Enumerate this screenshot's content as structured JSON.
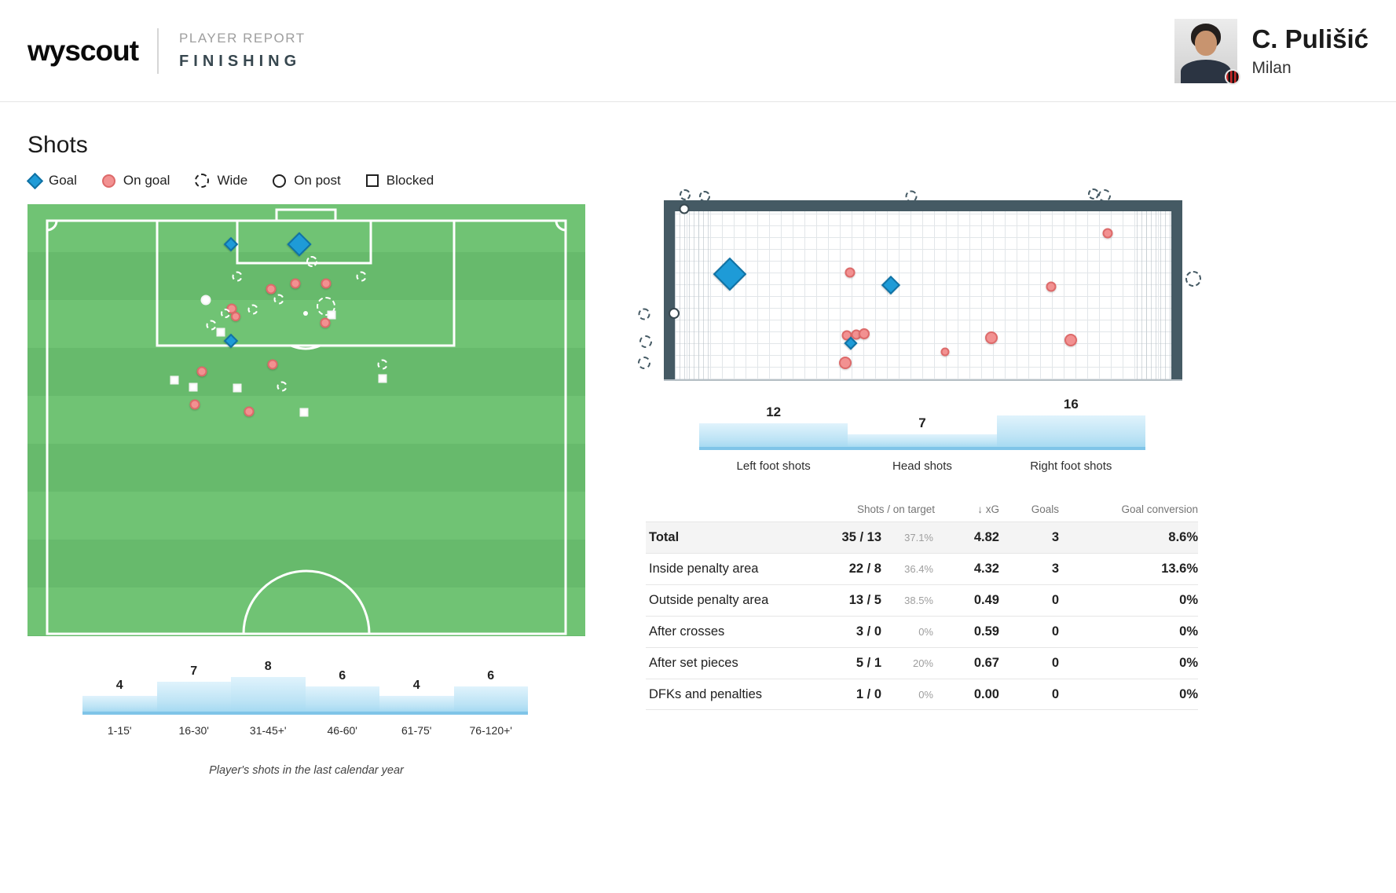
{
  "header": {
    "logo": "wyscout",
    "report_type": "PLAYER REPORT",
    "report_name": "FINISHING",
    "player": {
      "name": "C. Pulišić",
      "team": "Milan"
    }
  },
  "shots": {
    "title": "Shots",
    "legend": [
      {
        "type": "goal",
        "label": "Goal"
      },
      {
        "type": "on_goal",
        "label": "On goal"
      },
      {
        "type": "wide",
        "label": "Wide"
      },
      {
        "type": "on_post",
        "label": "On post"
      },
      {
        "type": "blocked",
        "label": "Blocked"
      }
    ],
    "caption": "Player's shots in the last calendar year"
  },
  "colors": {
    "goal_marker": "#1e9bd7",
    "on_goal_marker": "#f29191",
    "pitch_green_light": "#70c374",
    "pitch_green_dark": "#67ba6c",
    "goal_frame": "#455a64",
    "bar_blue_top": "#e0f3fc",
    "bar_blue_bottom": "#7fc4e8"
  },
  "chart_data": [
    {
      "type": "scatter",
      "name": "pitch-shot-map",
      "title": "Shots plotted on pitch (x/y in % of pitch view, s = marker px size)",
      "marker_types": [
        "goal",
        "on_goal",
        "wide",
        "on_post",
        "blocked"
      ],
      "points": [
        {
          "t": "goal",
          "x": 36.5,
          "y": 9.3,
          "s": 13
        },
        {
          "t": "goal",
          "x": 48.7,
          "y": 9.3,
          "s": 22
        },
        {
          "t": "wide",
          "x": 51.0,
          "y": 13.3,
          "s": 14
        },
        {
          "t": "wide",
          "x": 37.6,
          "y": 16.7,
          "s": 13
        },
        {
          "t": "wide",
          "x": 59.9,
          "y": 16.7,
          "s": 13
        },
        {
          "t": "on_goal",
          "x": 43.7,
          "y": 19.6,
          "s": 13
        },
        {
          "t": "on_goal",
          "x": 48.0,
          "y": 18.4,
          "s": 13
        },
        {
          "t": "on_goal",
          "x": 53.5,
          "y": 18.4,
          "s": 13
        },
        {
          "t": "on_post",
          "x": 32.0,
          "y": 22.2,
          "s": 13
        },
        {
          "t": "wide",
          "x": 45.1,
          "y": 22.0,
          "s": 13
        },
        {
          "t": "wide",
          "x": 40.4,
          "y": 24.4,
          "s": 13
        },
        {
          "t": "on_goal",
          "x": 36.6,
          "y": 24.2,
          "s": 13
        },
        {
          "t": "wide",
          "x": 35.5,
          "y": 25.3,
          "s": 12
        },
        {
          "t": "on_goal",
          "x": 37.3,
          "y": 26.0,
          "s": 12
        },
        {
          "t": "wide",
          "x": 33.0,
          "y": 28.0,
          "s": 13
        },
        {
          "t": "wide",
          "x": 53.5,
          "y": 23.6,
          "s": 24
        },
        {
          "t": "blocked",
          "x": 54.5,
          "y": 25.6,
          "s": 11
        },
        {
          "t": "on_goal",
          "x": 53.4,
          "y": 27.5,
          "s": 13
        },
        {
          "t": "blocked",
          "x": 34.6,
          "y": 29.6,
          "s": 11
        },
        {
          "t": "goal",
          "x": 36.5,
          "y": 31.6,
          "s": 13
        },
        {
          "t": "on_goal",
          "x": 31.3,
          "y": 38.7,
          "s": 13
        },
        {
          "t": "on_goal",
          "x": 43.9,
          "y": 37.1,
          "s": 13
        },
        {
          "t": "wide",
          "x": 63.7,
          "y": 37.1,
          "s": 13
        },
        {
          "t": "blocked",
          "x": 26.3,
          "y": 40.7,
          "s": 11
        },
        {
          "t": "blocked",
          "x": 29.7,
          "y": 42.4,
          "s": 11
        },
        {
          "t": "blocked",
          "x": 37.6,
          "y": 42.5,
          "s": 11
        },
        {
          "t": "blocked",
          "x": 63.7,
          "y": 40.4,
          "s": 11
        },
        {
          "t": "wide",
          "x": 45.6,
          "y": 42.2,
          "s": 13
        },
        {
          "t": "on_goal",
          "x": 30.0,
          "y": 46.4,
          "s": 13
        },
        {
          "t": "on_goal",
          "x": 39.7,
          "y": 48.0,
          "s": 13
        },
        {
          "t": "blocked",
          "x": 49.6,
          "y": 48.2,
          "s": 11
        }
      ]
    },
    {
      "type": "bar",
      "name": "shots-by-time-interval",
      "categories": [
        "1-15'",
        "16-30'",
        "31-45+'",
        "46-60'",
        "61-75'",
        "76-120+'"
      ],
      "values": [
        4,
        7,
        8,
        6,
        4,
        6
      ],
      "value_labels_position": "above",
      "ylim": [
        0,
        8
      ]
    },
    {
      "type": "scatter",
      "name": "goal-mouth-map",
      "title": "Shot placement in goal mouth (x/y in % of goal view, s = marker px size)",
      "points": [
        {
          "t": "wide",
          "x": 8.6,
          "y": 5.1,
          "s": 14
        },
        {
          "t": "wide",
          "x": 12.1,
          "y": 5.9,
          "s": 14
        },
        {
          "t": "wide",
          "x": 48.6,
          "y": 5.9,
          "s": 15
        },
        {
          "t": "wide",
          "x": 80.8,
          "y": 4.7,
          "s": 14
        },
        {
          "t": "wide",
          "x": 82.8,
          "y": 5.5,
          "s": 16
        },
        {
          "t": "on_post",
          "x": 8.5,
          "y": 12.2,
          "s": 13
        },
        {
          "t": "wide",
          "x": 98.5,
          "y": 47.1,
          "s": 20
        },
        {
          "t": "wide",
          "x": 1.4,
          "y": 64.7,
          "s": 15
        },
        {
          "t": "wide",
          "x": 1.7,
          "y": 78.4,
          "s": 16
        },
        {
          "t": "wide",
          "x": 1.4,
          "y": 89.0,
          "s": 16
        },
        {
          "t": "on_post",
          "x": 6.7,
          "y": 64.3,
          "s": 14
        },
        {
          "t": "goal",
          "x": 16.5,
          "y": 44.7,
          "s": 30
        },
        {
          "t": "goal",
          "x": 45.0,
          "y": 50.2,
          "s": 17
        },
        {
          "t": "on_goal",
          "x": 37.8,
          "y": 43.9,
          "s": 13
        },
        {
          "t": "on_goal",
          "x": 83.3,
          "y": 24.3,
          "s": 13
        },
        {
          "t": "on_goal",
          "x": 73.3,
          "y": 51.0,
          "s": 13
        },
        {
          "t": "on_goal",
          "x": 37.2,
          "y": 75.3,
          "s": 13
        },
        {
          "t": "on_goal",
          "x": 38.9,
          "y": 74.9,
          "s": 13
        },
        {
          "t": "on_goal",
          "x": 40.3,
          "y": 74.5,
          "s": 14
        },
        {
          "t": "goal",
          "x": 37.9,
          "y": 79.2,
          "s": 12
        },
        {
          "t": "on_goal",
          "x": 62.8,
          "y": 76.5,
          "s": 16
        },
        {
          "t": "on_goal",
          "x": 76.8,
          "y": 77.6,
          "s": 16
        },
        {
          "t": "on_goal",
          "x": 54.6,
          "y": 83.5,
          "s": 11
        },
        {
          "t": "on_goal",
          "x": 36.9,
          "y": 89.0,
          "s": 16
        }
      ]
    },
    {
      "type": "bar",
      "name": "shots-by-body-part",
      "categories": [
        "Left foot shots",
        "Head shots",
        "Right foot shots"
      ],
      "values": [
        12,
        7,
        16
      ],
      "value_labels_position": "above",
      "ylim": [
        0,
        16
      ]
    },
    {
      "type": "table",
      "name": "shot-stats",
      "headers": {
        "shots": "Shots / on target",
        "sort_icon": "↓",
        "xg": "xG",
        "goals": "Goals",
        "conversion": "Goal conversion"
      },
      "rows": [
        {
          "label": "Total",
          "shots": "35 / 13",
          "on_target_pct": "37.1%",
          "xg": "4.82",
          "goals": "3",
          "conversion": "8.6%",
          "emphasis": true
        },
        {
          "label": "Inside penalty area",
          "shots": "22 / 8",
          "on_target_pct": "36.4%",
          "xg": "4.32",
          "goals": "3",
          "conversion": "13.6%",
          "emphasis": false
        },
        {
          "label": "Outside penalty area",
          "shots": "13 / 5",
          "on_target_pct": "38.5%",
          "xg": "0.49",
          "goals": "0",
          "conversion": "0%",
          "emphasis": false
        },
        {
          "label": "After crosses",
          "shots": "3 / 0",
          "on_target_pct": "0%",
          "xg": "0.59",
          "goals": "0",
          "conversion": "0%",
          "emphasis": false
        },
        {
          "label": "After set pieces",
          "shots": "5 / 1",
          "on_target_pct": "20%",
          "xg": "0.67",
          "goals": "0",
          "conversion": "0%",
          "emphasis": false
        },
        {
          "label": "DFKs and penalties",
          "shots": "1 / 0",
          "on_target_pct": "0%",
          "xg": "0.00",
          "goals": "0",
          "conversion": "0%",
          "emphasis": false
        }
      ]
    }
  ]
}
